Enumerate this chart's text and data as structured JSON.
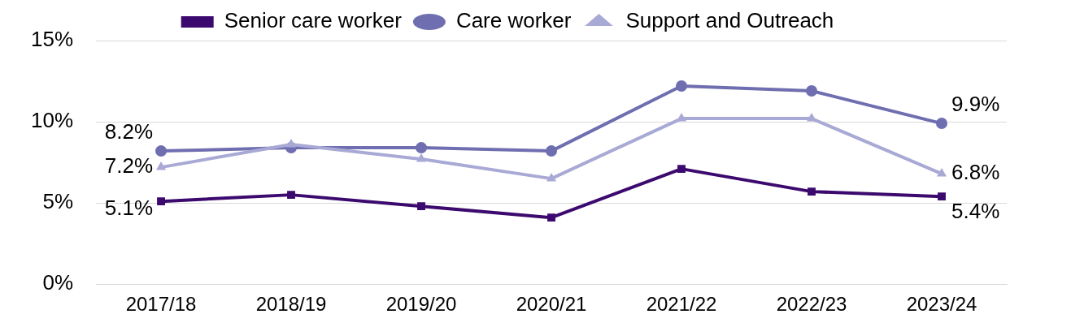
{
  "chart_data": {
    "type": "line",
    "categories": [
      "2017/18",
      "2018/19",
      "2019/20",
      "2020/21",
      "2021/22",
      "2022/23",
      "2023/24"
    ],
    "series": [
      {
        "name": "Senior care worker",
        "color": "#3c0a6e",
        "marker": "square",
        "values": [
          5.1,
          5.5,
          4.8,
          4.1,
          7.1,
          5.7,
          5.4
        ],
        "value_labels": [
          "5.1%",
          null,
          null,
          null,
          null,
          null,
          "5.4%"
        ]
      },
      {
        "name": "Care worker",
        "color": "#6e6eb0",
        "marker": "circle",
        "values": [
          8.2,
          8.4,
          8.4,
          8.2,
          12.2,
          11.9,
          9.9
        ],
        "value_labels": [
          "8.2%",
          null,
          null,
          null,
          null,
          null,
          "9.9%"
        ]
      },
      {
        "name": "Support and Outreach",
        "color": "#a9a9d6",
        "marker": "triangle",
        "values": [
          7.2,
          8.6,
          7.7,
          6.5,
          10.2,
          10.2,
          6.8
        ],
        "value_labels": [
          "7.2%",
          null,
          null,
          null,
          null,
          null,
          "6.8%"
        ]
      }
    ],
    "ylim": [
      0,
      15
    ],
    "yticks": [
      {
        "value": 0,
        "label": "0%"
      },
      {
        "value": 5,
        "label": "5%"
      },
      {
        "value": 10,
        "label": "10%"
      },
      {
        "value": 15,
        "label": "15%"
      }
    ],
    "grid": "y",
    "legend": "top",
    "line_style": "solid"
  }
}
